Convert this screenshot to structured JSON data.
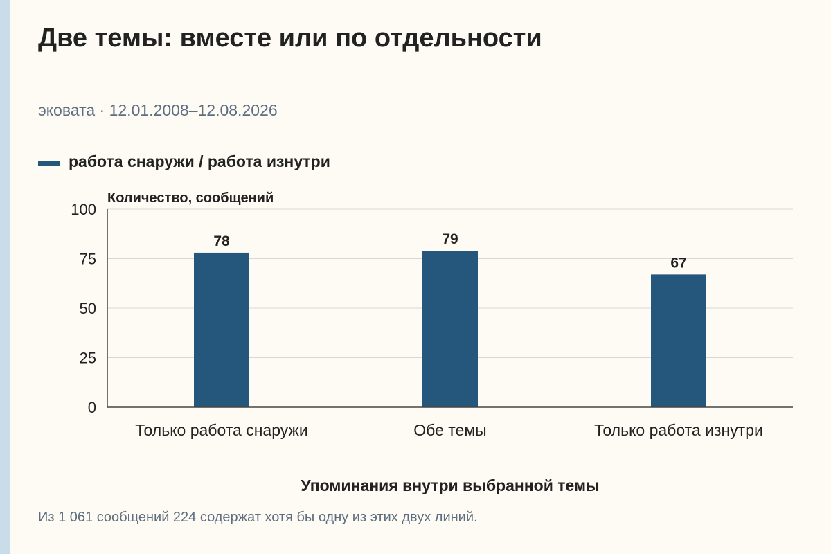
{
  "title": "Две темы: вместе или по отдельности",
  "subtitle": "эковата · 12.01.2008–12.08.2026",
  "footnote": "Из 1 061 сообщений 224 содержат хотя бы одну из этих двух линий.",
  "colors": {
    "bar": "#25567c",
    "background": "#fdfbf4",
    "grid": "#d8d8d8",
    "text": "#222222",
    "muted": "#5e6e80",
    "accent": "#c9dcea"
  },
  "chart_data": {
    "type": "bar",
    "categories": [
      "Только работа снаружи",
      "Обе темы",
      "Только работа изнутри"
    ],
    "series": [
      {
        "name": "работа снаружи / работа изнутри",
        "values": [
          78,
          79,
          67
        ]
      }
    ],
    "xlabel": "Упоминания внутри выбранной темы",
    "ylabel": "Количество, сообщений",
    "ylim": [
      0,
      100
    ],
    "yticks": [
      0,
      25,
      50,
      75,
      100
    ],
    "grid": true,
    "legend": "top-left",
    "data_labels": true
  }
}
